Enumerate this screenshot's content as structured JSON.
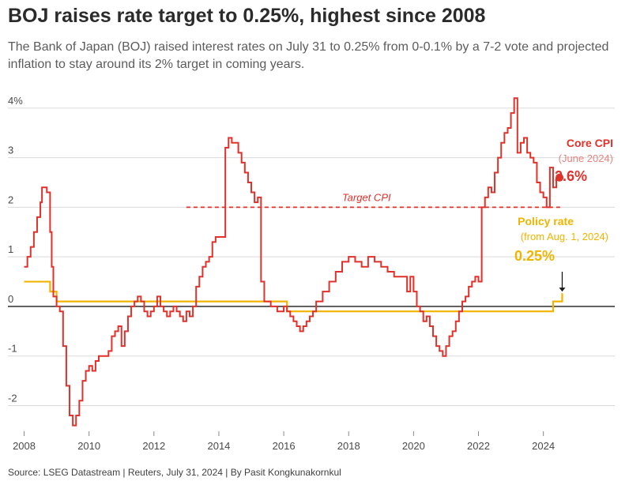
{
  "title": "BOJ raises rate target to 0.25%, highest since 2008",
  "subtitle": "The Bank of Japan (BOJ) raised interest rates on July 31 to 0.25% from 0-0.1% by a 7-2 vote and projected inflation to stay around its 2% target in coming years.",
  "source": "Source: LSEG Datastream | Reuters, July 31, 2024 | By Pasit Kongkunakornkul",
  "colors": {
    "cpi": "#e0312b",
    "policy": "#f0b400",
    "target": "#e0312b",
    "grid": "#d9d9d9",
    "zero": "#1a1a1a"
  },
  "chart_data": {
    "type": "line",
    "xlim": [
      2007.5,
      2026.2
    ],
    "ylim": [
      -2.55,
      4.3
    ],
    "x_ticks": [
      {
        "value": 2008,
        "label": "2008"
      },
      {
        "value": 2010,
        "label": "2010"
      },
      {
        "value": 2012,
        "label": "2012"
      },
      {
        "value": 2014,
        "label": "2014"
      },
      {
        "value": 2016,
        "label": "2016"
      },
      {
        "value": 2018,
        "label": "2018"
      },
      {
        "value": 2020,
        "label": "2020"
      },
      {
        "value": 2022,
        "label": "2022"
      },
      {
        "value": 2024,
        "label": "2024"
      }
    ],
    "y_ticks": [
      {
        "value": 4,
        "label": "4%"
      },
      {
        "value": 3,
        "label": "3"
      },
      {
        "value": 2,
        "label": "2"
      },
      {
        "value": 1,
        "label": "1"
      },
      {
        "value": 0,
        "label": "0"
      },
      {
        "value": -1,
        "label": "-1"
      },
      {
        "value": -2,
        "label": "-2"
      }
    ],
    "grid": true,
    "series": [
      {
        "name": "Core CPI",
        "note": "(June 2024)",
        "latest_label": "2.6%",
        "x": [
          2008.0,
          2008.1,
          2008.2,
          2008.3,
          2008.4,
          2008.5,
          2008.55,
          2008.6,
          2008.7,
          2008.8,
          2008.85,
          2008.9,
          2009.0,
          2009.1,
          2009.2,
          2009.3,
          2009.4,
          2009.5,
          2009.6,
          2009.7,
          2009.8,
          2009.9,
          2010.0,
          2010.1,
          2010.2,
          2010.3,
          2010.4,
          2010.5,
          2010.6,
          2010.7,
          2010.8,
          2010.9,
          2011.0,
          2011.1,
          2011.2,
          2011.3,
          2011.4,
          2011.5,
          2011.6,
          2011.7,
          2011.8,
          2011.9,
          2012.0,
          2012.1,
          2012.2,
          2012.3,
          2012.4,
          2012.5,
          2012.6,
          2012.7,
          2012.8,
          2012.9,
          2013.0,
          2013.1,
          2013.2,
          2013.3,
          2013.4,
          2013.5,
          2013.6,
          2013.7,
          2013.8,
          2013.9,
          2014.0,
          2014.1,
          2014.2,
          2014.3,
          2014.4,
          2014.5,
          2014.6,
          2014.7,
          2014.8,
          2014.9,
          2015.0,
          2015.1,
          2015.2,
          2015.3,
          2015.4,
          2015.5,
          2015.6,
          2015.8,
          2016.0,
          2016.1,
          2016.2,
          2016.3,
          2016.4,
          2016.5,
          2016.6,
          2016.7,
          2016.8,
          2016.9,
          2017.0,
          2017.2,
          2017.4,
          2017.6,
          2017.8,
          2018.0,
          2018.2,
          2018.4,
          2018.6,
          2018.8,
          2019.0,
          2019.2,
          2019.4,
          2019.6,
          2019.8,
          2019.9,
          2020.0,
          2020.1,
          2020.2,
          2020.3,
          2020.4,
          2020.5,
          2020.6,
          2020.7,
          2020.8,
          2020.9,
          2021.0,
          2021.1,
          2021.2,
          2021.3,
          2021.4,
          2021.5,
          2021.6,
          2021.7,
          2021.8,
          2021.9,
          2022.0,
          2022.1,
          2022.2,
          2022.3,
          2022.4,
          2022.5,
          2022.6,
          2022.7,
          2022.8,
          2022.9,
          2023.0,
          2023.1,
          2023.2,
          2023.3,
          2023.4,
          2023.5,
          2023.6,
          2023.7,
          2023.8,
          2023.9,
          2024.0,
          2024.1,
          2024.2,
          2024.3,
          2024.4
        ],
        "values": [
          0.8,
          1.0,
          1.2,
          1.5,
          1.8,
          2.1,
          2.4,
          2.4,
          2.3,
          1.5,
          0.8,
          0.2,
          0.0,
          -0.1,
          -0.8,
          -1.6,
          -2.2,
          -2.4,
          -2.2,
          -1.9,
          -1.5,
          -1.3,
          -1.2,
          -1.3,
          -1.1,
          -1.0,
          -1.0,
          -1.0,
          -0.9,
          -0.6,
          -0.5,
          -0.4,
          -0.8,
          -0.5,
          -0.2,
          0.0,
          0.1,
          0.2,
          0.1,
          -0.1,
          -0.2,
          -0.1,
          0.0,
          0.2,
          0.0,
          -0.1,
          -0.2,
          -0.1,
          0.0,
          -0.1,
          -0.2,
          -0.3,
          -0.1,
          -0.2,
          0.0,
          0.4,
          0.6,
          0.8,
          0.9,
          1.0,
          1.3,
          1.4,
          1.4,
          1.4,
          3.2,
          3.4,
          3.3,
          3.3,
          3.1,
          2.9,
          2.7,
          2.5,
          2.3,
          2.1,
          2.2,
          0.5,
          0.1,
          0.1,
          0.0,
          -0.1,
          0.0,
          -0.1,
          -0.2,
          -0.3,
          -0.4,
          -0.5,
          -0.4,
          -0.3,
          -0.2,
          -0.1,
          0.1,
          0.3,
          0.5,
          0.7,
          0.9,
          1.0,
          0.9,
          0.8,
          1.0,
          0.9,
          0.8,
          0.7,
          0.6,
          0.6,
          0.3,
          0.6,
          0.3,
          0.0,
          -0.1,
          -0.3,
          -0.2,
          -0.4,
          -0.6,
          -0.8,
          -0.9,
          -1.0,
          -0.8,
          -0.6,
          -0.5,
          -0.3,
          -0.1,
          0.1,
          0.2,
          0.4,
          0.5,
          0.6,
          0.5,
          2.0,
          2.2,
          2.4,
          2.3,
          2.7,
          3.0,
          3.3,
          3.5,
          3.6,
          3.9,
          4.2,
          3.1,
          3.3,
          3.4,
          3.1,
          3.0,
          2.9,
          2.5,
          2.3,
          2.2,
          2.0,
          2.8,
          2.4,
          2.6
        ]
      },
      {
        "name": "Policy rate",
        "note": "(from Aug. 1, 2024)",
        "latest_label": "0.25%",
        "x": [
          2008.0,
          2008.7,
          2008.8,
          2008.9,
          2009.0,
          2016.0,
          2016.1,
          2024.2,
          2024.3,
          2024.5,
          2024.58,
          2024.6
        ],
        "values": [
          0.5,
          0.5,
          0.3,
          0.3,
          0.1,
          0.1,
          -0.1,
          -0.1,
          0.1,
          0.1,
          0.25,
          0.25
        ]
      }
    ],
    "reference_line": {
      "label": "Target CPI",
      "value": 2,
      "x_start": 2013.0
    },
    "legend": "inline-right"
  }
}
